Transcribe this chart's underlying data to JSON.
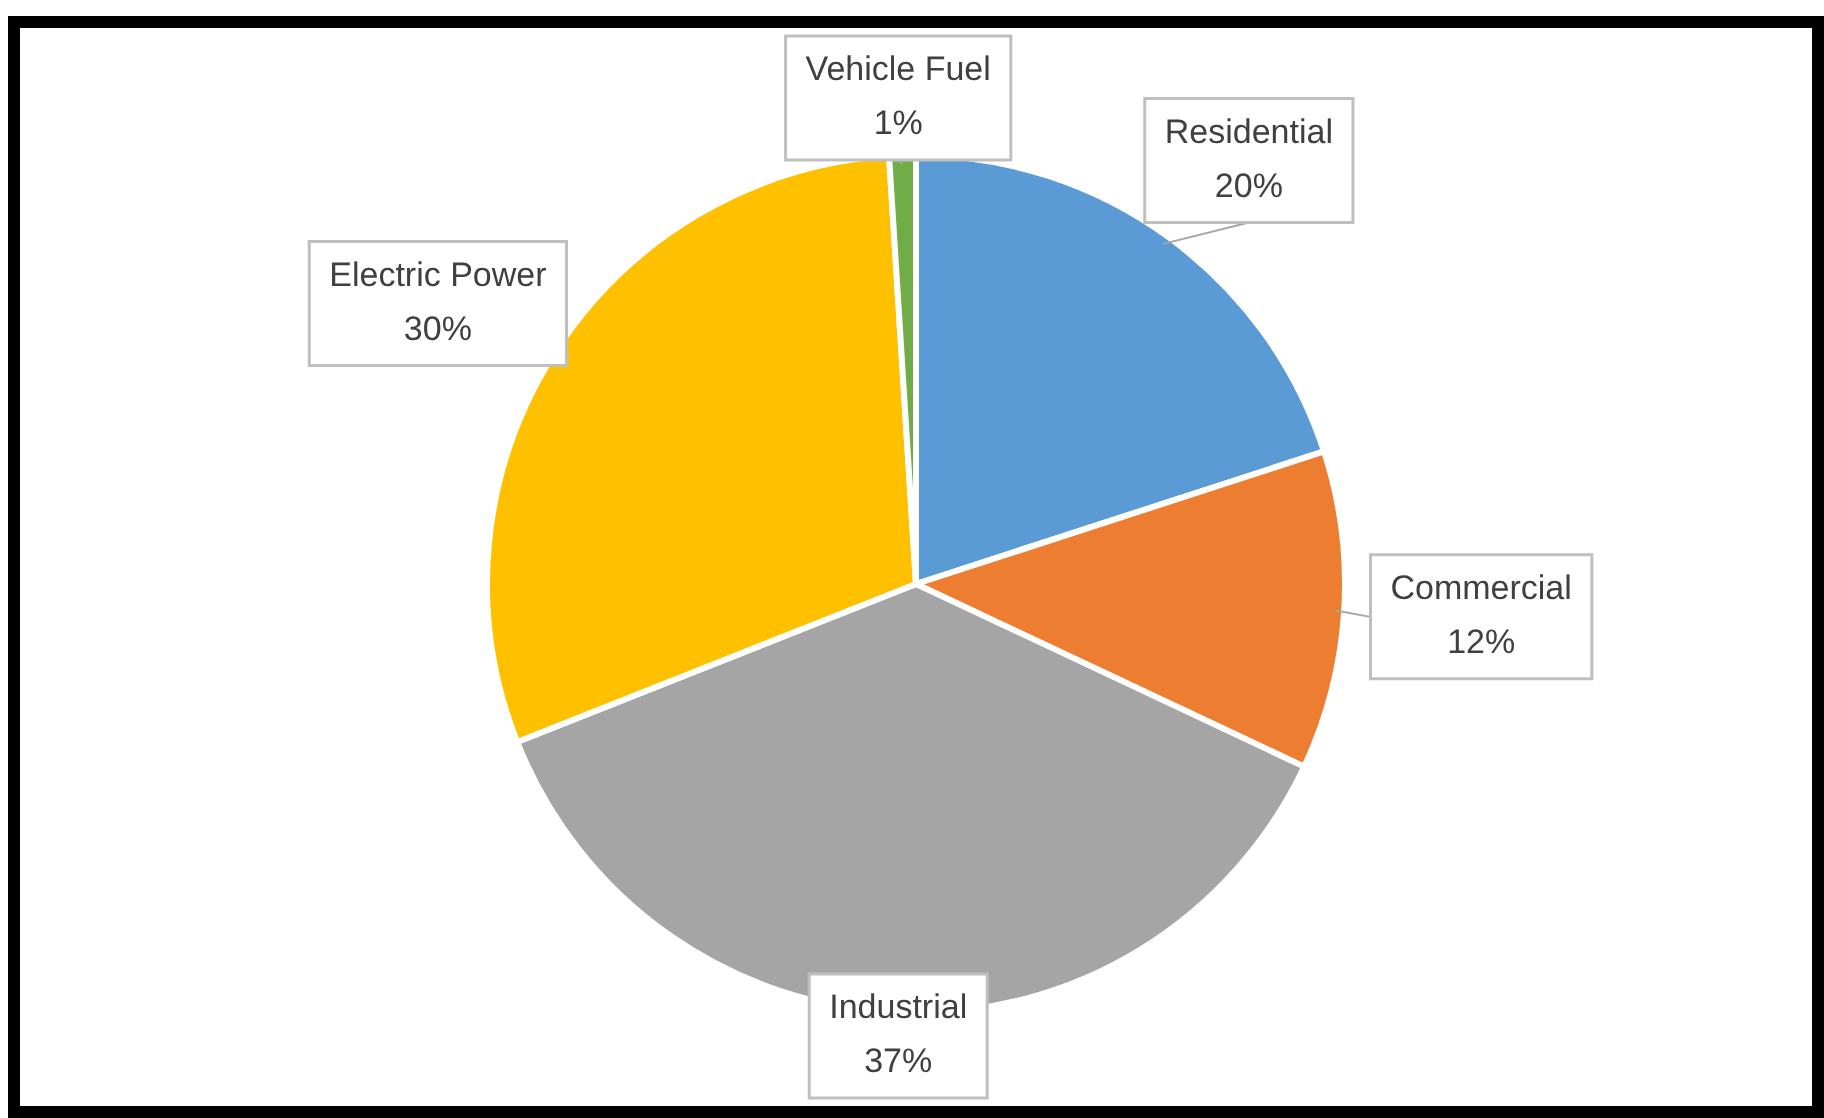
{
  "chart_data": {
    "type": "pie",
    "categories": [
      "Residential",
      "Commercial",
      "Industrial",
      "Electric Power",
      "Vehicle Fuel"
    ],
    "values": [
      20,
      12,
      37,
      30,
      1
    ],
    "value_labels": [
      "20%",
      "12%",
      "37%",
      "30%",
      "1%"
    ],
    "colors": [
      "#5b9bd5",
      "#ed7d31",
      "#a5a5a5",
      "#ffc000",
      "#70ad47"
    ],
    "legend": false
  }
}
